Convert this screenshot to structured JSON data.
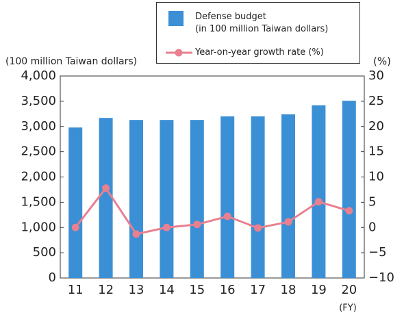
{
  "chart_data": {
    "type": "bar-line",
    "ylabel": "(100 million Taiwan dollars)",
    "y2label": "(%)",
    "xlabel": "(FY)",
    "categories": [
      "11",
      "12",
      "13",
      "14",
      "15",
      "16",
      "17",
      "18",
      "19",
      "20"
    ],
    "series": [
      {
        "name": "Defense budget\n (in 100 million Taiwan dollars)",
        "type": "bar",
        "color": "#3b8fd5",
        "values": [
          2980,
          3170,
          3130,
          3130,
          3130,
          3200,
          3200,
          3240,
          3420,
          3510
        ]
      },
      {
        "name": "Year-on-year growth rate (%)",
        "type": "line",
        "axis": "y2",
        "color": "#e8808f",
        "values": [
          0,
          7.8,
          -1.3,
          0,
          0.6,
          2.2,
          -0.1,
          1.1,
          5.1,
          3.3
        ]
      }
    ],
    "ylim": [
      0,
      4000
    ],
    "yticks": [
      0,
      500,
      {
        "value": 1000,
        "label": "1,000"
      },
      {
        "value": 1500,
        "label": "1,500"
      },
      {
        "value": 2000,
        "label": "2,000"
      },
      {
        "value": 2500,
        "label": "2,500"
      },
      {
        "value": 3000,
        "label": "3,000"
      },
      {
        "value": 3500,
        "label": "3,500"
      },
      {
        "value": 4000,
        "label": "4,000"
      }
    ],
    "y2lim": [
      -10,
      30
    ],
    "y2ticks": [
      {
        "value": -10,
        "label": "−10"
      },
      {
        "value": -5,
        "label": "−5"
      },
      0,
      5,
      10,
      15,
      20,
      25,
      30
    ]
  }
}
